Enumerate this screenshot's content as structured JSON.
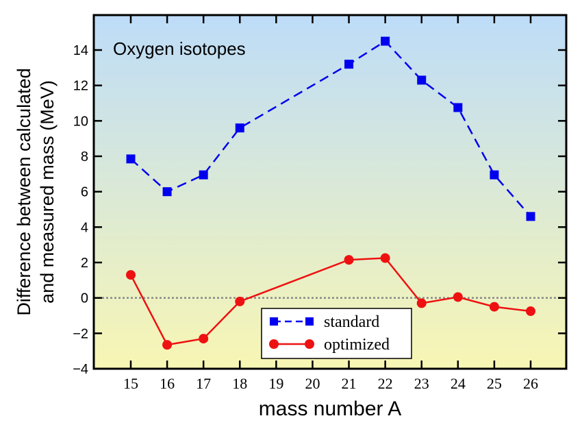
{
  "chart_data": {
    "type": "line",
    "title": "Oxygen isotopes",
    "xlabel": "mass number A",
    "ylabel_lines": [
      "Difference between calculated",
      "and measured mass (MeV)"
    ],
    "xlim": [
      14,
      27
    ],
    "ylim": [
      -4,
      16
    ],
    "xticks": [
      15,
      16,
      17,
      18,
      19,
      20,
      21,
      22,
      23,
      24,
      25,
      26
    ],
    "yticks": [
      -4,
      -2,
      0,
      2,
      4,
      6,
      8,
      10,
      12,
      14
    ],
    "reference_line": {
      "y": 0,
      "style": "dotted",
      "color": "#888888"
    },
    "background_gradient": {
      "top": "#bddcf8",
      "bottom": "#f8f6b4"
    },
    "grid": false,
    "legend_position": "bottom-center",
    "series": [
      {
        "name": "standard",
        "marker": "square",
        "line": "dashed",
        "color": "#0000ee",
        "x": [
          15,
          16,
          17,
          18,
          21,
          22,
          23,
          24,
          25,
          26
        ],
        "y": [
          7.85,
          6.0,
          6.95,
          9.6,
          13.2,
          14.5,
          12.3,
          10.75,
          6.95,
          4.6
        ]
      },
      {
        "name": "optimized",
        "marker": "circle",
        "line": "solid",
        "color": "#ee1111",
        "x": [
          15,
          16,
          17,
          18,
          21,
          22,
          23,
          24,
          25,
          26
        ],
        "y": [
          1.3,
          -2.65,
          -2.3,
          -0.2,
          2.15,
          2.25,
          -0.3,
          0.05,
          -0.5,
          -0.75
        ]
      }
    ]
  }
}
